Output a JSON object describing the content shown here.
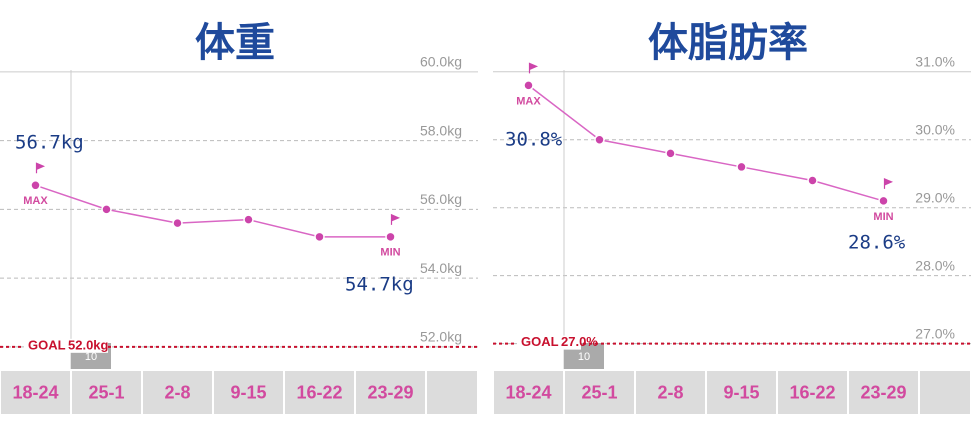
{
  "chart_data": [
    {
      "type": "line",
      "title": "体重",
      "categories": [
        "18-24",
        "25-1",
        "2-8",
        "9-15",
        "16-22",
        "23-29"
      ],
      "month": "10",
      "series": [
        {
          "name": "体重",
          "color": "#d966c4",
          "values": [
            56.7,
            56.0,
            55.6,
            55.7,
            55.2,
            55.2
          ]
        }
      ],
      "ylim": [
        51.5,
        60.2
      ],
      "yticks": [
        {
          "value": 60,
          "label": "60.0kg"
        },
        {
          "value": 58,
          "label": "58.0kg"
        },
        {
          "value": 56,
          "label": "56.0kg"
        },
        {
          "value": 54,
          "label": "54.0kg"
        },
        {
          "value": 52,
          "label": "52.0kg"
        }
      ],
      "goal_label": "GOAL",
      "goal": {
        "value": 52,
        "label": "52.0kg"
      },
      "max_label": "MAX",
      "min_label": "MIN",
      "notes": [
        "56.7kg",
        "54.7kg"
      ],
      "grid": true
    },
    {
      "type": "line",
      "title": "体脂肪率",
      "categories": [
        "18-24",
        "25-1",
        "2-8",
        "9-15",
        "16-22",
        "23-29"
      ],
      "month": "10",
      "series": [
        {
          "name": "体脂肪率",
          "color": "#d966c4",
          "values": [
            30.8,
            30.0,
            29.8,
            29.6,
            29.4,
            29.1
          ]
        }
      ],
      "ylim": [
        26.7,
        31.1
      ],
      "yticks": [
        {
          "value": 31,
          "label": "31.0%"
        },
        {
          "value": 30,
          "label": "30.0%"
        },
        {
          "value": 29,
          "label": "29.0%"
        },
        {
          "value": 28,
          "label": "28.0%"
        },
        {
          "value": 27,
          "label": "27.0%"
        }
      ],
      "goal_label": "GOAL",
      "goal": {
        "value": 27,
        "label": "27.0%"
      },
      "max_label": "MAX",
      "min_label": "MIN",
      "notes": [
        "30.8%",
        "28.6%"
      ],
      "grid": true
    }
  ]
}
